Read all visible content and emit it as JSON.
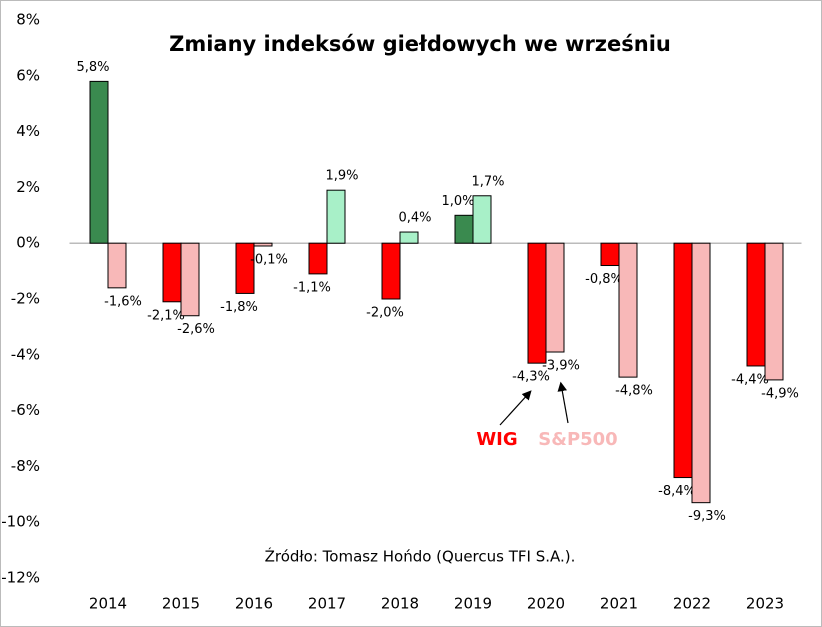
{
  "chart_data": {
    "type": "bar",
    "title": "Zmiany indeksów giełdowych we wrześniu",
    "annotation": "Źródło: Tomasz Hońdo (Quercus TFI S.A.).",
    "categories": [
      "2014",
      "2015",
      "2016",
      "2017",
      "2018",
      "2019",
      "2020",
      "2021",
      "2022",
      "2023"
    ],
    "series": [
      {
        "name": "WIG",
        "color": "#ff0000",
        "positive_color": "#3a8a4f",
        "values": [
          5.8,
          -2.1,
          -1.8,
          -1.1,
          -2.0,
          1.0,
          -4.3,
          -0.8,
          -8.4,
          -4.4
        ],
        "value_labels": [
          "5,8%",
          "-2,1%",
          "-1,8%",
          "-1,1%",
          "-2,0%",
          "1,0%",
          "-4,3%",
          "-0,8%",
          "-8,4%",
          "-4,4%"
        ]
      },
      {
        "name": "S&P500",
        "color": "#f8b8b8",
        "positive_color": "#a8f0c8",
        "values": [
          -1.6,
          -2.6,
          -0.1,
          1.9,
          0.4,
          1.7,
          -3.9,
          -4.8,
          -9.3,
          -4.9
        ],
        "value_labels": [
          "-1,6%",
          "-2,6%",
          "-0,1%",
          "1,9%",
          "0,4%",
          "1,7%",
          "-3,9%",
          "-4,8%",
          "-9,3%",
          "-4,9%"
        ]
      }
    ],
    "ylim": [
      -12,
      8
    ],
    "yticks": [
      {
        "value": -12,
        "label": "-12%"
      },
      {
        "value": -10,
        "label": "-10%"
      },
      {
        "value": -8,
        "label": "-8%"
      },
      {
        "value": -6,
        "label": "-6%"
      },
      {
        "value": -4,
        "label": "-4%"
      },
      {
        "value": -2,
        "label": "-2%"
      },
      {
        "value": 0,
        "label": "0%"
      },
      {
        "value": 2,
        "label": "2%"
      },
      {
        "value": 4,
        "label": "4%"
      },
      {
        "value": 6,
        "label": "6%"
      },
      {
        "value": 8,
        "label": "8%"
      }
    ]
  }
}
